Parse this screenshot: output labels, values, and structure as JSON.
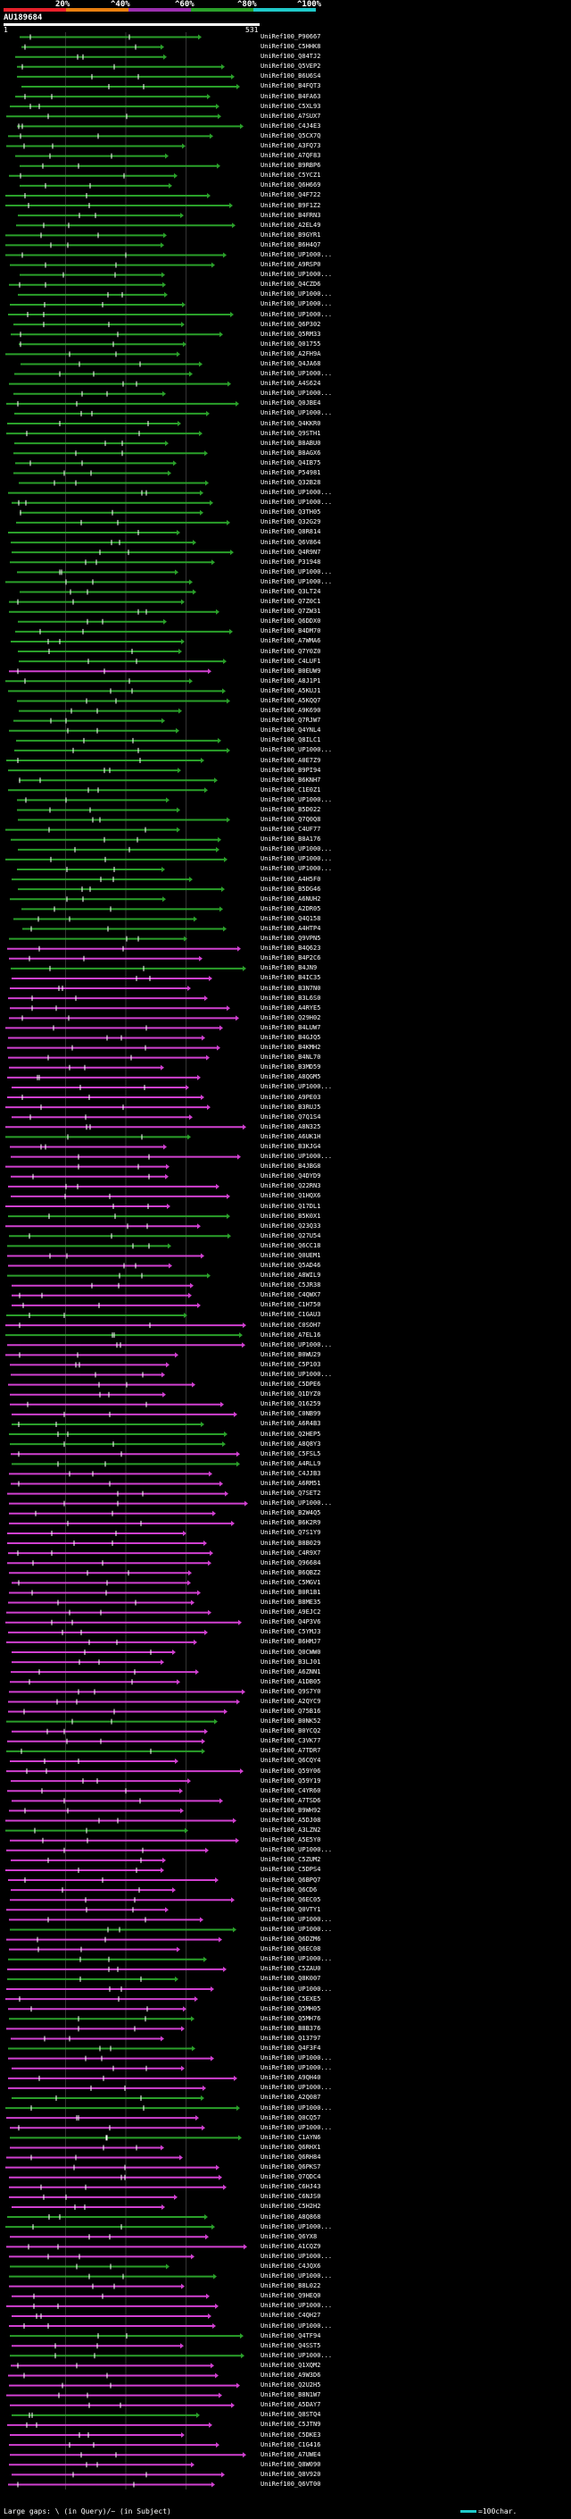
{
  "scale": {
    "labels": [
      "20%",
      "^40%",
      "^60%",
      "^80%",
      "^100%"
    ],
    "colors": [
      "#e8202a",
      "#e87e10",
      "#9b2fae",
      "#2aa02a",
      "#1fc9c9"
    ]
  },
  "query": {
    "title": "AU189684",
    "start": "1",
    "end": "531"
  },
  "hits": [
    "UniRef100_P90667",
    "UniRef100_C5HHK8",
    "UniRef100_Q84TJ2",
    "UniRef100_Q5VEP2",
    "UniRef100_B6U6S4",
    "UniRef100_B4FQT3",
    "UniRef100_B4FA63",
    "UniRef100_C5XL93",
    "UniRef100_A7SUX7",
    "UniRef100_C4J4E3",
    "UniRef100_Q5CX7Q",
    "UniRef100_A3FQ73",
    "UniRef100_A7QF83",
    "UniRef100_B9RBP6",
    "UniRef100_C5YCZ1",
    "UniRef100_Q6H669",
    "UniRef100_Q4F722",
    "UniRef100_B9F1Z2",
    "UniRef100_B4FRN3",
    "UniRef100_A2EL49",
    "UniRef100_B9GYR1",
    "UniRef100_B6H4Q7",
    "UniRef100_UP1000...",
    "UniRef100_A9RSP0",
    "UniRef100_UP1000...",
    "UniRef100_Q4CZD6",
    "UniRef100_UP1000...",
    "UniRef100_UP1000...",
    "UniRef100_UP1000...",
    "UniRef100_Q6P302",
    "UniRef100_Q5RM33",
    "UniRef100_Q01755",
    "UniRef100_A2FH9A",
    "UniRef100_Q4JA68",
    "UniRef100_UP1000...",
    "UniRef100_A4S624",
    "UniRef100_UP1000...",
    "UniRef100_Q0JBE4",
    "UniRef100_UP1000...",
    "UniRef100_Q4KKR0",
    "UniRef100_Q9STH1",
    "UniRef100_B8ABU0",
    "UniRef100_B8AGX6",
    "UniRef100_Q4IB75",
    "UniRef100_P54981",
    "UniRef100_Q32B28",
    "UniRef100_UP1000...",
    "UniRef100_UP1000...",
    "UniRef100_Q3TH05",
    "UniRef100_Q32G29",
    "UniRef100_Q8R814",
    "UniRef100_Q6V864",
    "UniRef100_Q4R9N7",
    "UniRef100_P31948",
    "UniRef100_UP1000...",
    "UniRef100_UP1000...",
    "UniRef100_Q3LT24",
    "UniRef100_Q7Z0C1",
    "UniRef100_Q7ZW31",
    "UniRef100_Q6DDX0",
    "UniRef100_B4DM70",
    "UniRef100_A7WMA6",
    "UniRef100_Q7Y0Z0",
    "UniRef100_C4LUF1",
    "UniRef100_B0EUW9",
    "UniRef100_A8J1P1",
    "UniRef100_A5KUJ1",
    "UniRef100_A5KQQ7",
    "UniRef100_A9K690",
    "UniRef100_Q7RJW7",
    "UniRef100_Q4YNL4",
    "UniRef100_Q8ILC1",
    "UniRef100_UP1000...",
    "UniRef100_A0E7Z9",
    "UniRef100_B9PI94",
    "UniRef100_B6KNH7",
    "UniRef100_C1E0Z1",
    "UniRef100_UP1000...",
    "UniRef100_B5D022",
    "UniRef100_Q7Q0Q8",
    "UniRef100_C4UF77",
    "UniRef100_B8A176",
    "UniRef100_UP1000...",
    "UniRef100_UP1000...",
    "UniRef100_UP1000...",
    "UniRef100_A4H5F0",
    "UniRef100_B5DG46",
    "UniRef100_A6NUH2",
    "UniRef100_A2DR05",
    "UniRef100_Q4Q158",
    "UniRef100_A4HTP4",
    "UniRef100_Q9VPN5",
    "UniRef100_B4Q623",
    "UniRef100_B4P2C6",
    "UniRef100_B4JN9",
    "UniRef100_B4IC35",
    "UniRef100_B3N7N0",
    "UniRef100_B3L6S0",
    "UniRef100_A4RYE5",
    "UniRef100_Q29H02",
    "UniRef100_B4LUW7",
    "UniRef100_B4GJQ5",
    "UniRef100_B4KMH2",
    "UniRef100_B4NL70",
    "UniRef100_B3MD59",
    "UniRef100_A8QGM5",
    "UniRef100_UP1000...",
    "UniRef100_A9PE03",
    "UniRef100_B3RUJ5",
    "UniRef100_Q7Q1S4",
    "UniRef100_A8N325",
    "UniRef100_A6UK1H",
    "UniRef100_B3KJG4",
    "UniRef100_UP1000...",
    "UniRef100_B4JBG8",
    "UniRef100_Q4DYD9",
    "UniRef100_Q22RN3",
    "UniRef100_Q1HQX6",
    "UniRef100_Q17DL1",
    "UniRef100_B5K0X1",
    "UniRef100_Q23Q33",
    "UniRef100_Q27U54",
    "UniRef100_Q6CC18",
    "UniRef100_Q0UEM1",
    "UniRef100_Q5AD46",
    "UniRef100_A8WIL9",
    "UniRef100_C5JR38",
    "UniRef100_C4QWX7",
    "UniRef100_C1H750",
    "UniRef100_C1GAU3",
    "UniRef100_C0SOH7",
    "UniRef100_A7EL16",
    "UniRef100_UP1000...",
    "UniRef100_B0WU29",
    "UniRef100_C5P103",
    "UniRef100_UP1000...",
    "UniRef100_C5DPE6",
    "UniRef100_Q1DYZ0",
    "UniRef100_Q16259",
    "UniRef100_C0NB99",
    "UniRef100_A6R4B3",
    "UniRef100_Q2HEP5",
    "UniRef100_A8Q8Y3",
    "UniRef100_C5FSL5",
    "UniRef100_A4RLL9",
    "UniRef100_C4JJB3",
    "UniRef100_A6RM51",
    "UniRef100_Q7SET2",
    "UniRef100_UP1000...",
    "UniRef100_B2W4Q5",
    "UniRef100_B6K2R9",
    "UniRef100_Q7S1Y9",
    "UniRef100_B8B029",
    "UniRef100_C4R9X7",
    "UniRef100_Q96684",
    "UniRef100_B6QBZ2",
    "UniRef100_C5MGV1",
    "UniRef100_B0R1B1",
    "UniRef100_B8ME35",
    "UniRef100_A9EJC2",
    "UniRef100_Q4P3V6",
    "UniRef100_C5YMJ3",
    "UniRef100_B6HMJ7",
    "UniRef100_Q0CWW0",
    "UniRef100_B3LJ01",
    "UniRef100_A6ZNN1",
    "UniRef100_A1DB05",
    "UniRef100_Q9S7Y0",
    "UniRef100_A2QYC9",
    "UniRef100_Q75B16",
    "UniRef100_B0NK52",
    "UniRef100_B0YCQ2",
    "UniRef100_C3VK77",
    "UniRef100_A7TDR7",
    "UniRef100_Q6CQY4",
    "UniRef100_Q59Y06",
    "UniRef100_Q59Y19",
    "UniRef100_C4YR60",
    "UniRef100_A7TSD6",
    "UniRef100_B9WH92",
    "UniRef100_A5DJ08",
    "UniRef100_A3LZN2",
    "UniRef100_A5E5Y0",
    "UniRef100_UP1000...",
    "UniRef100_C5ZUM2",
    "UniRef100_C5DPS4",
    "UniRef100_Q6BPQ7",
    "UniRef100_Q6CD6",
    "UniRef100_Q6EC05",
    "UniRef100_Q0VTY1",
    "UniRef100_UP1000...",
    "UniRef100_UP1000...",
    "UniRef100_Q6DZM6",
    "UniRef100_Q6EC08",
    "UniRef100_UP1000...",
    "UniRef100_C5ZAU0",
    "UniRef100_Q8K007",
    "UniRef100_UP1000...",
    "UniRef100_C5EXE5",
    "UniRef100_Q5MH05",
    "UniRef100_Q5MH76",
    "UniRef100_B8B376",
    "UniRef100_Q13797",
    "UniRef100_Q4F3F4",
    "UniRef100_UP1000...",
    "UniRef100_UP1000...",
    "UniRef100_A9QH40",
    "UniRef100_UP1000...",
    "UniRef100_A2Q087",
    "UniRef100_UP1000...",
    "UniRef100_Q0CQ57",
    "UniRef100_UP1000...",
    "UniRef100_C1AYN6",
    "UniRef100_Q6RHX1",
    "UniRef100_Q6RH84",
    "UniRef100_Q6PKS7",
    "UniRef100_Q7QDC4",
    "UniRef100_C6HJ43",
    "UniRef100_C6NJS0",
    "UniRef100_C5H2H2",
    "UniRef100_A8Q868",
    "UniRef100_UP1000...",
    "UniRef100_Q6YX8",
    "UniRef100_A1CQZ9",
    "UniRef100_UP1000...",
    "UniRef100_C4JQX6",
    "UniRef100_UP1000...",
    "UniRef100_B8L022",
    "UniRef100_Q9HEQ0",
    "UniRef100_UP1000...",
    "UniRef100_C4QH27",
    "UniRef100_UP1000...",
    "UniRef100_Q4TF94",
    "UniRef100_Q4SST5",
    "UniRef100_UP1000...",
    "UniRef100_Q1XQM2",
    "UniRef100_A9W3D6",
    "UniRef100_Q2U2H5",
    "UniRef100_B8N1W7",
    "UniRef100_A5DAY7",
    "UniRef100_Q8STQ4",
    "UniRef100_C5JTN9",
    "UniRef100_C5DKE3",
    "UniRef100_C1G416",
    "UniRef100_A7UWE4",
    "UniRef100_Q8W090",
    "UniRef100_Q8V920",
    "UniRef100_Q6VT00"
  ],
  "legend": {
    "left": "Large gaps: \\ (in Query)/~ (in Subject)",
    "right": "=100char."
  }
}
